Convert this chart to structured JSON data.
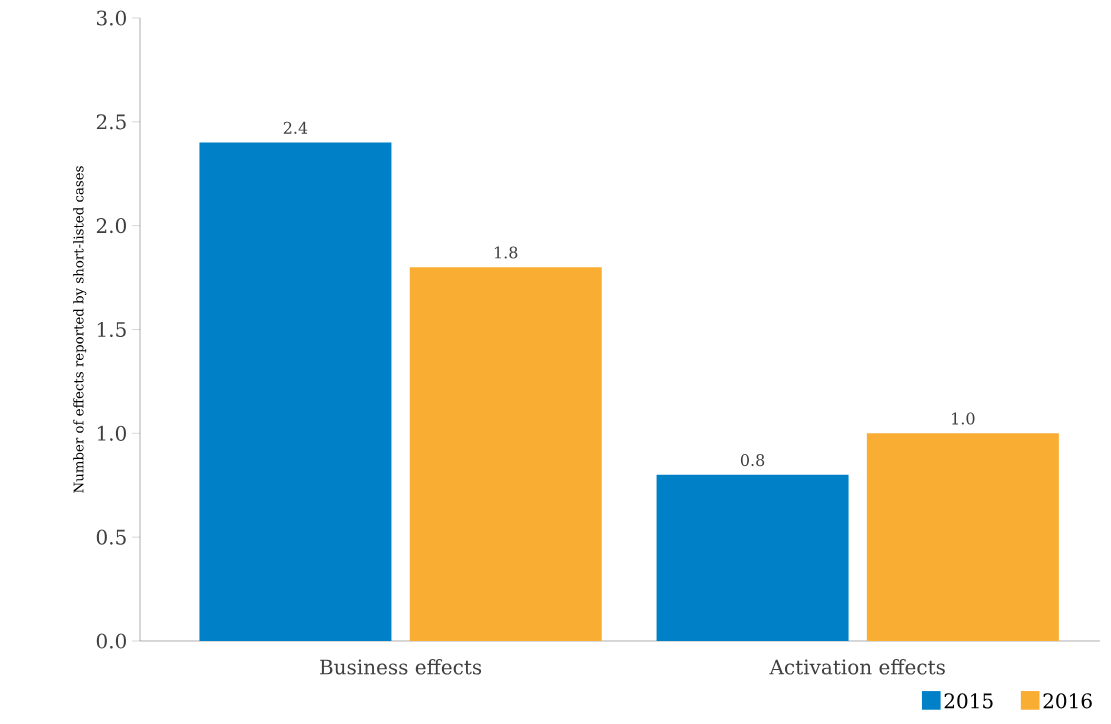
{
  "chart_data": {
    "type": "bar",
    "ylabel": "Number of effects reported by short-listed cases",
    "categories": [
      "Business effects",
      "Activation effects"
    ],
    "series": [
      {
        "name": "2015",
        "color": "#0080c6",
        "values": [
          2.4,
          0.8
        ],
        "value_labels": [
          "2.4",
          "0.8"
        ]
      },
      {
        "name": "2016",
        "color": "#f9ad33",
        "values": [
          1.8,
          1.0
        ],
        "value_labels": [
          "1.8",
          "1.0"
        ]
      }
    ],
    "ylim": [
      0,
      3
    ],
    "yticks": [
      {
        "value": 0,
        "label": "0.0"
      },
      {
        "value": 0.5,
        "label": "0.5"
      },
      {
        "value": 1,
        "label": "1.0"
      },
      {
        "value": 1.5,
        "label": "1.5"
      },
      {
        "value": 2,
        "label": "2.0"
      },
      {
        "value": 2.5,
        "label": "2.5"
      },
      {
        "value": 3,
        "label": "3.0"
      }
    ],
    "grid": false,
    "legend": "bottom right"
  }
}
